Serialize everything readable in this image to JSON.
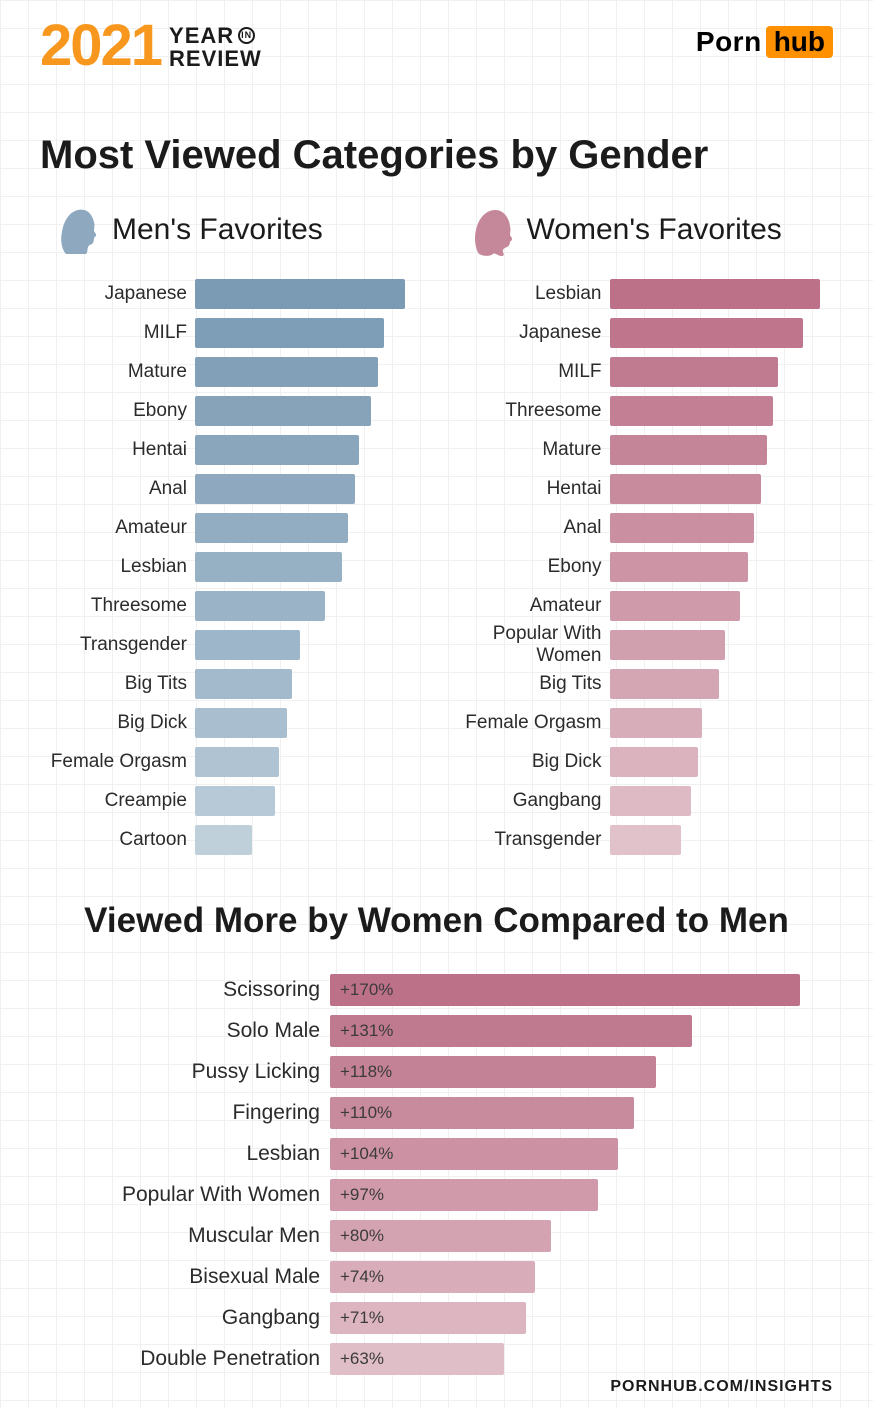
{
  "header": {
    "year_number": "2021",
    "year_line1": "YEAR",
    "year_in": "IN",
    "year_line2": "REVIEW",
    "brand_part1": "Porn",
    "brand_part2": "hub",
    "brand_accent_bg": "#ff9000",
    "year_color": "#f7971d"
  },
  "main_title": "Most Viewed Categories by Gender",
  "columns": {
    "men": {
      "title": "Men's Favorites",
      "silhouette_color": "#8ea9bf",
      "max_bar_width": 210,
      "items": [
        {
          "label": "Japanese",
          "value": 100,
          "color": "#7b9ab4"
        },
        {
          "label": "MILF",
          "value": 90,
          "color": "#7e9db6"
        },
        {
          "label": "Mature",
          "value": 87,
          "color": "#82a0b8"
        },
        {
          "label": "Ebony",
          "value": 84,
          "color": "#86a3ba"
        },
        {
          "label": "Hentai",
          "value": 78,
          "color": "#8aa6bd"
        },
        {
          "label": "Anal",
          "value": 76,
          "color": "#8ea9bf"
        },
        {
          "label": "Amateur",
          "value": 73,
          "color": "#92adc2"
        },
        {
          "label": "Lesbian",
          "value": 70,
          "color": "#96b0c4"
        },
        {
          "label": "Threesome",
          "value": 62,
          "color": "#9ab3c7"
        },
        {
          "label": "Transgender",
          "value": 50,
          "color": "#9eb6c9"
        },
        {
          "label": "Big Tits",
          "value": 46,
          "color": "#a3bacc"
        },
        {
          "label": "Big Dick",
          "value": 44,
          "color": "#a9bece"
        },
        {
          "label": "Female Orgasm",
          "value": 40,
          "color": "#afc3d2"
        },
        {
          "label": "Creampie",
          "value": 38,
          "color": "#b7c9d6"
        },
        {
          "label": "Cartoon",
          "value": 27,
          "color": "#c0d0db"
        }
      ]
    },
    "women": {
      "title": "Women's Favorites",
      "silhouette_color": "#c5889b",
      "max_bar_width": 210,
      "items": [
        {
          "label": "Lesbian",
          "value": 100,
          "color": "#bc7189"
        },
        {
          "label": "Japanese",
          "value": 92,
          "color": "#bf768d"
        },
        {
          "label": "MILF",
          "value": 80,
          "color": "#c17b91"
        },
        {
          "label": "Threesome",
          "value": 78,
          "color": "#c38095"
        },
        {
          "label": "Mature",
          "value": 75,
          "color": "#c58599"
        },
        {
          "label": "Hentai",
          "value": 72,
          "color": "#c88a9d"
        },
        {
          "label": "Anal",
          "value": 69,
          "color": "#ca8fa1"
        },
        {
          "label": "Ebony",
          "value": 66,
          "color": "#cc94a5"
        },
        {
          "label": "Amateur",
          "value": 62,
          "color": "#cf9aaa"
        },
        {
          "label": "Popular With Women",
          "value": 55,
          "color": "#d1a0af"
        },
        {
          "label": "Big Tits",
          "value": 52,
          "color": "#d4a6b4"
        },
        {
          "label": "Female Orgasm",
          "value": 44,
          "color": "#d7adb9"
        },
        {
          "label": "Big Dick",
          "value": 42,
          "color": "#dab3bf"
        },
        {
          "label": "Gangbang",
          "value": 39,
          "color": "#ddbac4"
        },
        {
          "label": "Transgender",
          "value": 34,
          "color": "#e1c1ca"
        }
      ]
    }
  },
  "sub_title": "Viewed More by Women Compared to Men",
  "comparison": {
    "max_bar_width": 470,
    "max_value": 170,
    "items": [
      {
        "label": "Scissoring",
        "value_label": "+170%",
        "value": 170,
        "color": "#bc7189"
      },
      {
        "label": "Solo Male",
        "value_label": "+131%",
        "value": 131,
        "color": "#c07a90"
      },
      {
        "label": "Pussy Licking",
        "value_label": "+118%",
        "value": 118,
        "color": "#c48297"
      },
      {
        "label": "Fingering",
        "value_label": "+110%",
        "value": 110,
        "color": "#c88a9d"
      },
      {
        "label": "Lesbian",
        "value_label": "+104%",
        "value": 104,
        "color": "#cc92a4"
      },
      {
        "label": "Popular With Women",
        "value_label": "+97%",
        "value": 97,
        "color": "#d09aab"
      },
      {
        "label": "Muscular Men",
        "value_label": "+80%",
        "value": 80,
        "color": "#d4a3b2"
      },
      {
        "label": "Bisexual Male",
        "value_label": "+74%",
        "value": 74,
        "color": "#d8acb9"
      },
      {
        "label": "Gangbang",
        "value_label": "+71%",
        "value": 71,
        "color": "#dcb5c0"
      },
      {
        "label": "Double Penetration",
        "value_label": "+63%",
        "value": 63,
        "color": "#e0bec8"
      }
    ]
  },
  "footer_text": "PORNHUB.COM/INSIGHTS"
}
